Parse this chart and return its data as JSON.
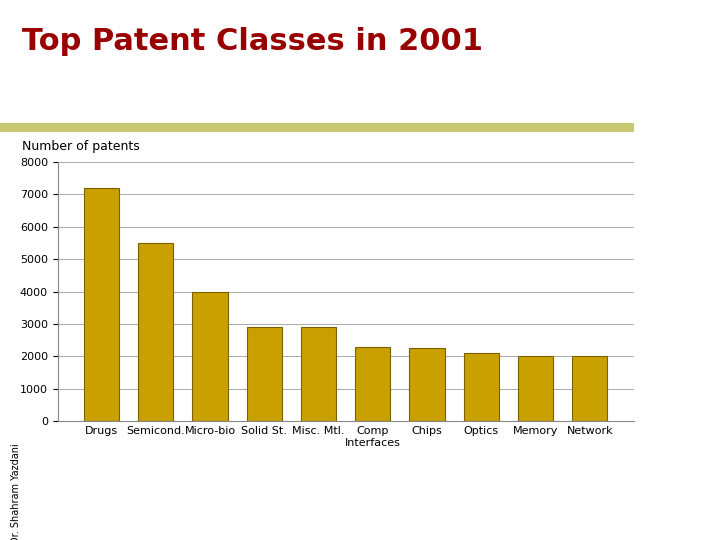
{
  "title": "Top Patent Classes in 2001",
  "ylabel": "Number of patents",
  "categories": [
    "Drugs",
    "Semicond.",
    "Micro-bio",
    "Solid St.",
    "Misc. Mtl.",
    "Comp\nInterfaces",
    "Chips",
    "Optics",
    "Memory",
    "Network"
  ],
  "values": [
    7200,
    5500,
    4000,
    2900,
    2900,
    2300,
    2250,
    2100,
    2000,
    2000
  ],
  "bar_color": "#C8A000",
  "bar_edge_color": "#7A6000",
  "title_color": "#990000",
  "title_fontsize": 22,
  "ylabel_fontsize": 9,
  "tick_fontsize": 8,
  "ylim": [
    0,
    8000
  ],
  "yticks": [
    0,
    1000,
    2000,
    3000,
    4000,
    5000,
    6000,
    7000,
    8000
  ],
  "background_color": "#ffffff",
  "plot_bg_color": "#ffffff",
  "grid_color": "#aaaaaa",
  "author_text": "Dr. Shahram Yazdani",
  "separator_color": "#c8c870"
}
